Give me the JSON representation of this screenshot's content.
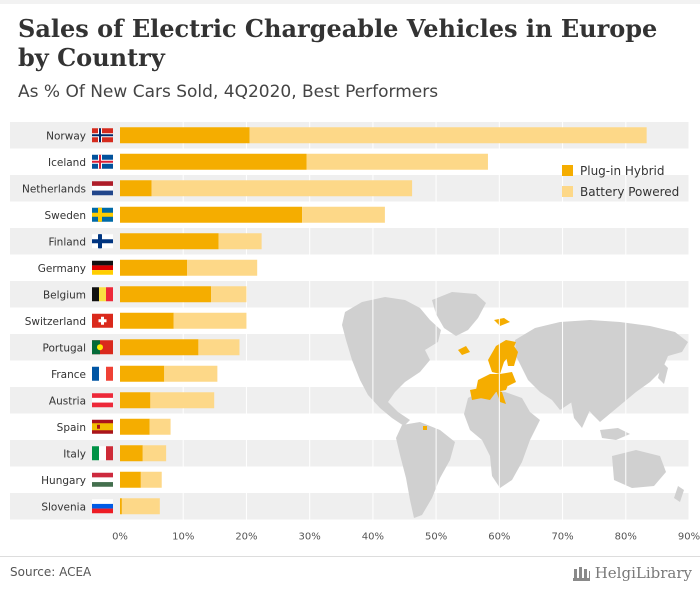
{
  "header": {
    "title": "Sales of Electric Chargeable Vehicles in Europe by Country",
    "subtitle": "As % Of New Cars Sold, 4Q2020, Best Performers"
  },
  "footer": {
    "source": "Source: ACEA",
    "brand": "HelgiLibrary"
  },
  "colors": {
    "plugin_hybrid": "#f5ad00",
    "battery_powered": "#fdd888",
    "row_band": "#efefef",
    "map": "#d0d0d0",
    "highlight": "#f5ad00"
  },
  "chart_data": {
    "type": "bar",
    "orientation": "horizontal",
    "stacked": true,
    "title": "Sales of Electric Chargeable Vehicles in Europe by Country",
    "subtitle": "As % Of New Cars Sold, 4Q2020, Best Performers",
    "categories": [
      "Norway",
      "Iceland",
      "Netherlands",
      "Sweden",
      "Finland",
      "Germany",
      "Belgium",
      "Switzerland",
      "Portugal",
      "France",
      "Austria",
      "Spain",
      "Italy",
      "Hungary",
      "Slovenia"
    ],
    "series": [
      {
        "name": "Plug-in Hybrid",
        "values": [
          20.5,
          29.5,
          5.0,
          28.8,
          15.6,
          10.6,
          14.4,
          8.5,
          12.4,
          7.0,
          4.8,
          4.7,
          3.6,
          3.3,
          0.3
        ]
      },
      {
        "name": "Battery Powered",
        "values": [
          62.8,
          28.7,
          41.2,
          13.1,
          6.8,
          11.1,
          5.6,
          11.5,
          6.5,
          8.4,
          10.1,
          3.3,
          3.7,
          3.3,
          6.0
        ]
      }
    ],
    "xlim": [
      0,
      90
    ],
    "xticks": [
      "0%",
      "10%",
      "20%",
      "30%",
      "40%",
      "50%",
      "60%",
      "70%",
      "80%",
      "90%"
    ],
    "legend_position": "top-right",
    "flags": [
      "norway-flag",
      "iceland-flag",
      "netherlands-flag",
      "sweden-flag",
      "finland-flag",
      "germany-flag",
      "belgium-flag",
      "switzerland-flag",
      "portugal-flag",
      "france-flag",
      "austria-flag",
      "spain-flag",
      "italy-flag",
      "hungary-flag",
      "slovenia-flag"
    ]
  }
}
